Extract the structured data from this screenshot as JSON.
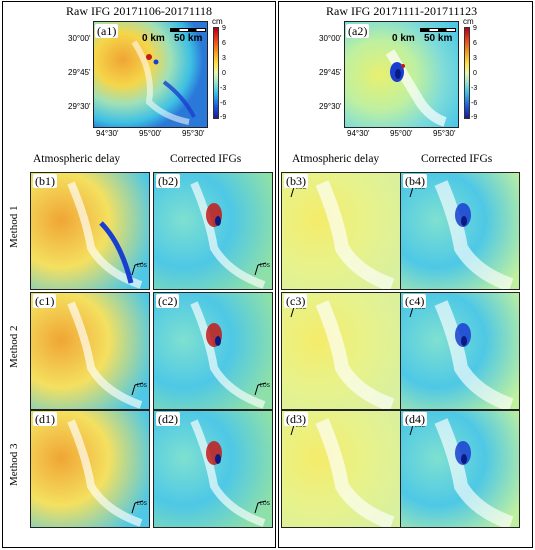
{
  "figure": {
    "left_title": "Raw IFG 20171106-20171118",
    "right_title": "Raw IFG 20171111-201711123",
    "col_headers": [
      "Atmospheric delay",
      "Corrected IFGs",
      "Atmospheric delay",
      "Corrected IFGs"
    ],
    "row_labels": [
      "Method 1",
      "Method 2",
      "Method 3"
    ],
    "panel_labels": {
      "a1": "(a1)",
      "a2": "(a2)",
      "b1": "(b1)",
      "b2": "(b2)",
      "b3": "(b3)",
      "b4": "(b4)",
      "c1": "(c1)",
      "c2": "(c2)",
      "c3": "(c3)",
      "c4": "(c4)",
      "d1": "(d1)",
      "d2": "(d2)",
      "d3": "(d3)",
      "d4": "(d4)"
    },
    "lat_ticks": [
      "30°00'",
      "29°45'",
      "29°30'"
    ],
    "lon_ticks": [
      "94°30'",
      "95°00'",
      "95°30'"
    ],
    "colorbar": {
      "unit": "cm",
      "ticks": [
        "9",
        "6",
        "3",
        "0",
        "-3",
        "-6",
        "-9"
      ],
      "range": [
        -9,
        9
      ]
    },
    "scale_bar": {
      "start": "0 km",
      "end": "50 km"
    },
    "los_label": "LOS"
  },
  "colors": {
    "warm": "#f2b23a",
    "yellow": "#f4ec6a",
    "cyan": "#4ec8e6",
    "blue": "#1a3ed0",
    "deep": "#0a1a80",
    "red": "#c41a1a"
  }
}
